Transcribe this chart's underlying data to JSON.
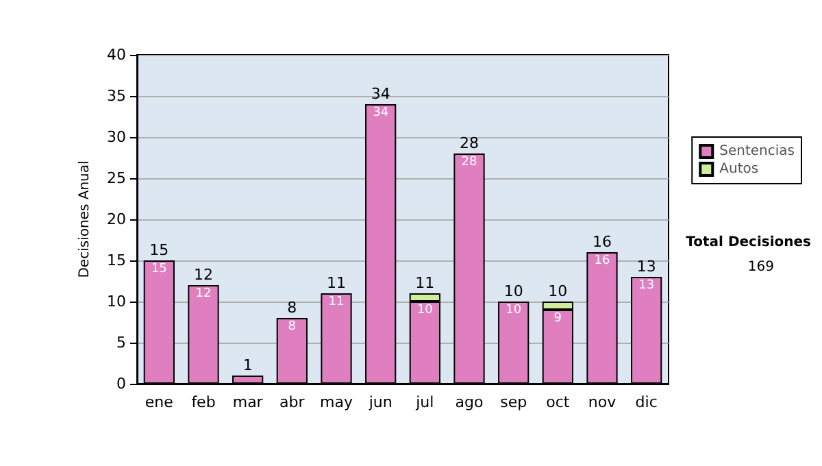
{
  "chart_data": {
    "type": "bar",
    "stacked": true,
    "ylabel": "Decisiones Anual",
    "categories": [
      "ene",
      "feb",
      "mar",
      "abr",
      "may",
      "jun",
      "jul",
      "ago",
      "sep",
      "oct",
      "nov",
      "dic"
    ],
    "series": [
      {
        "name": "Sentencias",
        "color": "#e07fc0",
        "values": [
          15,
          12,
          1,
          8,
          11,
          34,
          10,
          28,
          10,
          9,
          16,
          13
        ],
        "value_labels": [
          "15",
          "12",
          null,
          "8",
          "11",
          "34",
          "10",
          "28",
          "10",
          "9",
          "16",
          "13"
        ]
      },
      {
        "name": "Autos",
        "color": "#cfee99",
        "values": [
          0,
          0,
          0,
          0,
          0,
          0,
          1,
          0,
          0,
          1,
          0,
          0
        ]
      }
    ],
    "totals": [
      "15",
      "12",
      "1",
      "8",
      "11",
      "34",
      "11",
      "28",
      "10",
      "10",
      "16",
      "13"
    ],
    "ylim": [
      0,
      40
    ],
    "yticks": [
      0,
      5,
      10,
      15,
      20,
      25,
      30,
      35,
      40
    ],
    "grid": "y",
    "legend": "right",
    "annotations": [
      "Total Decisiones",
      "169"
    ]
  }
}
